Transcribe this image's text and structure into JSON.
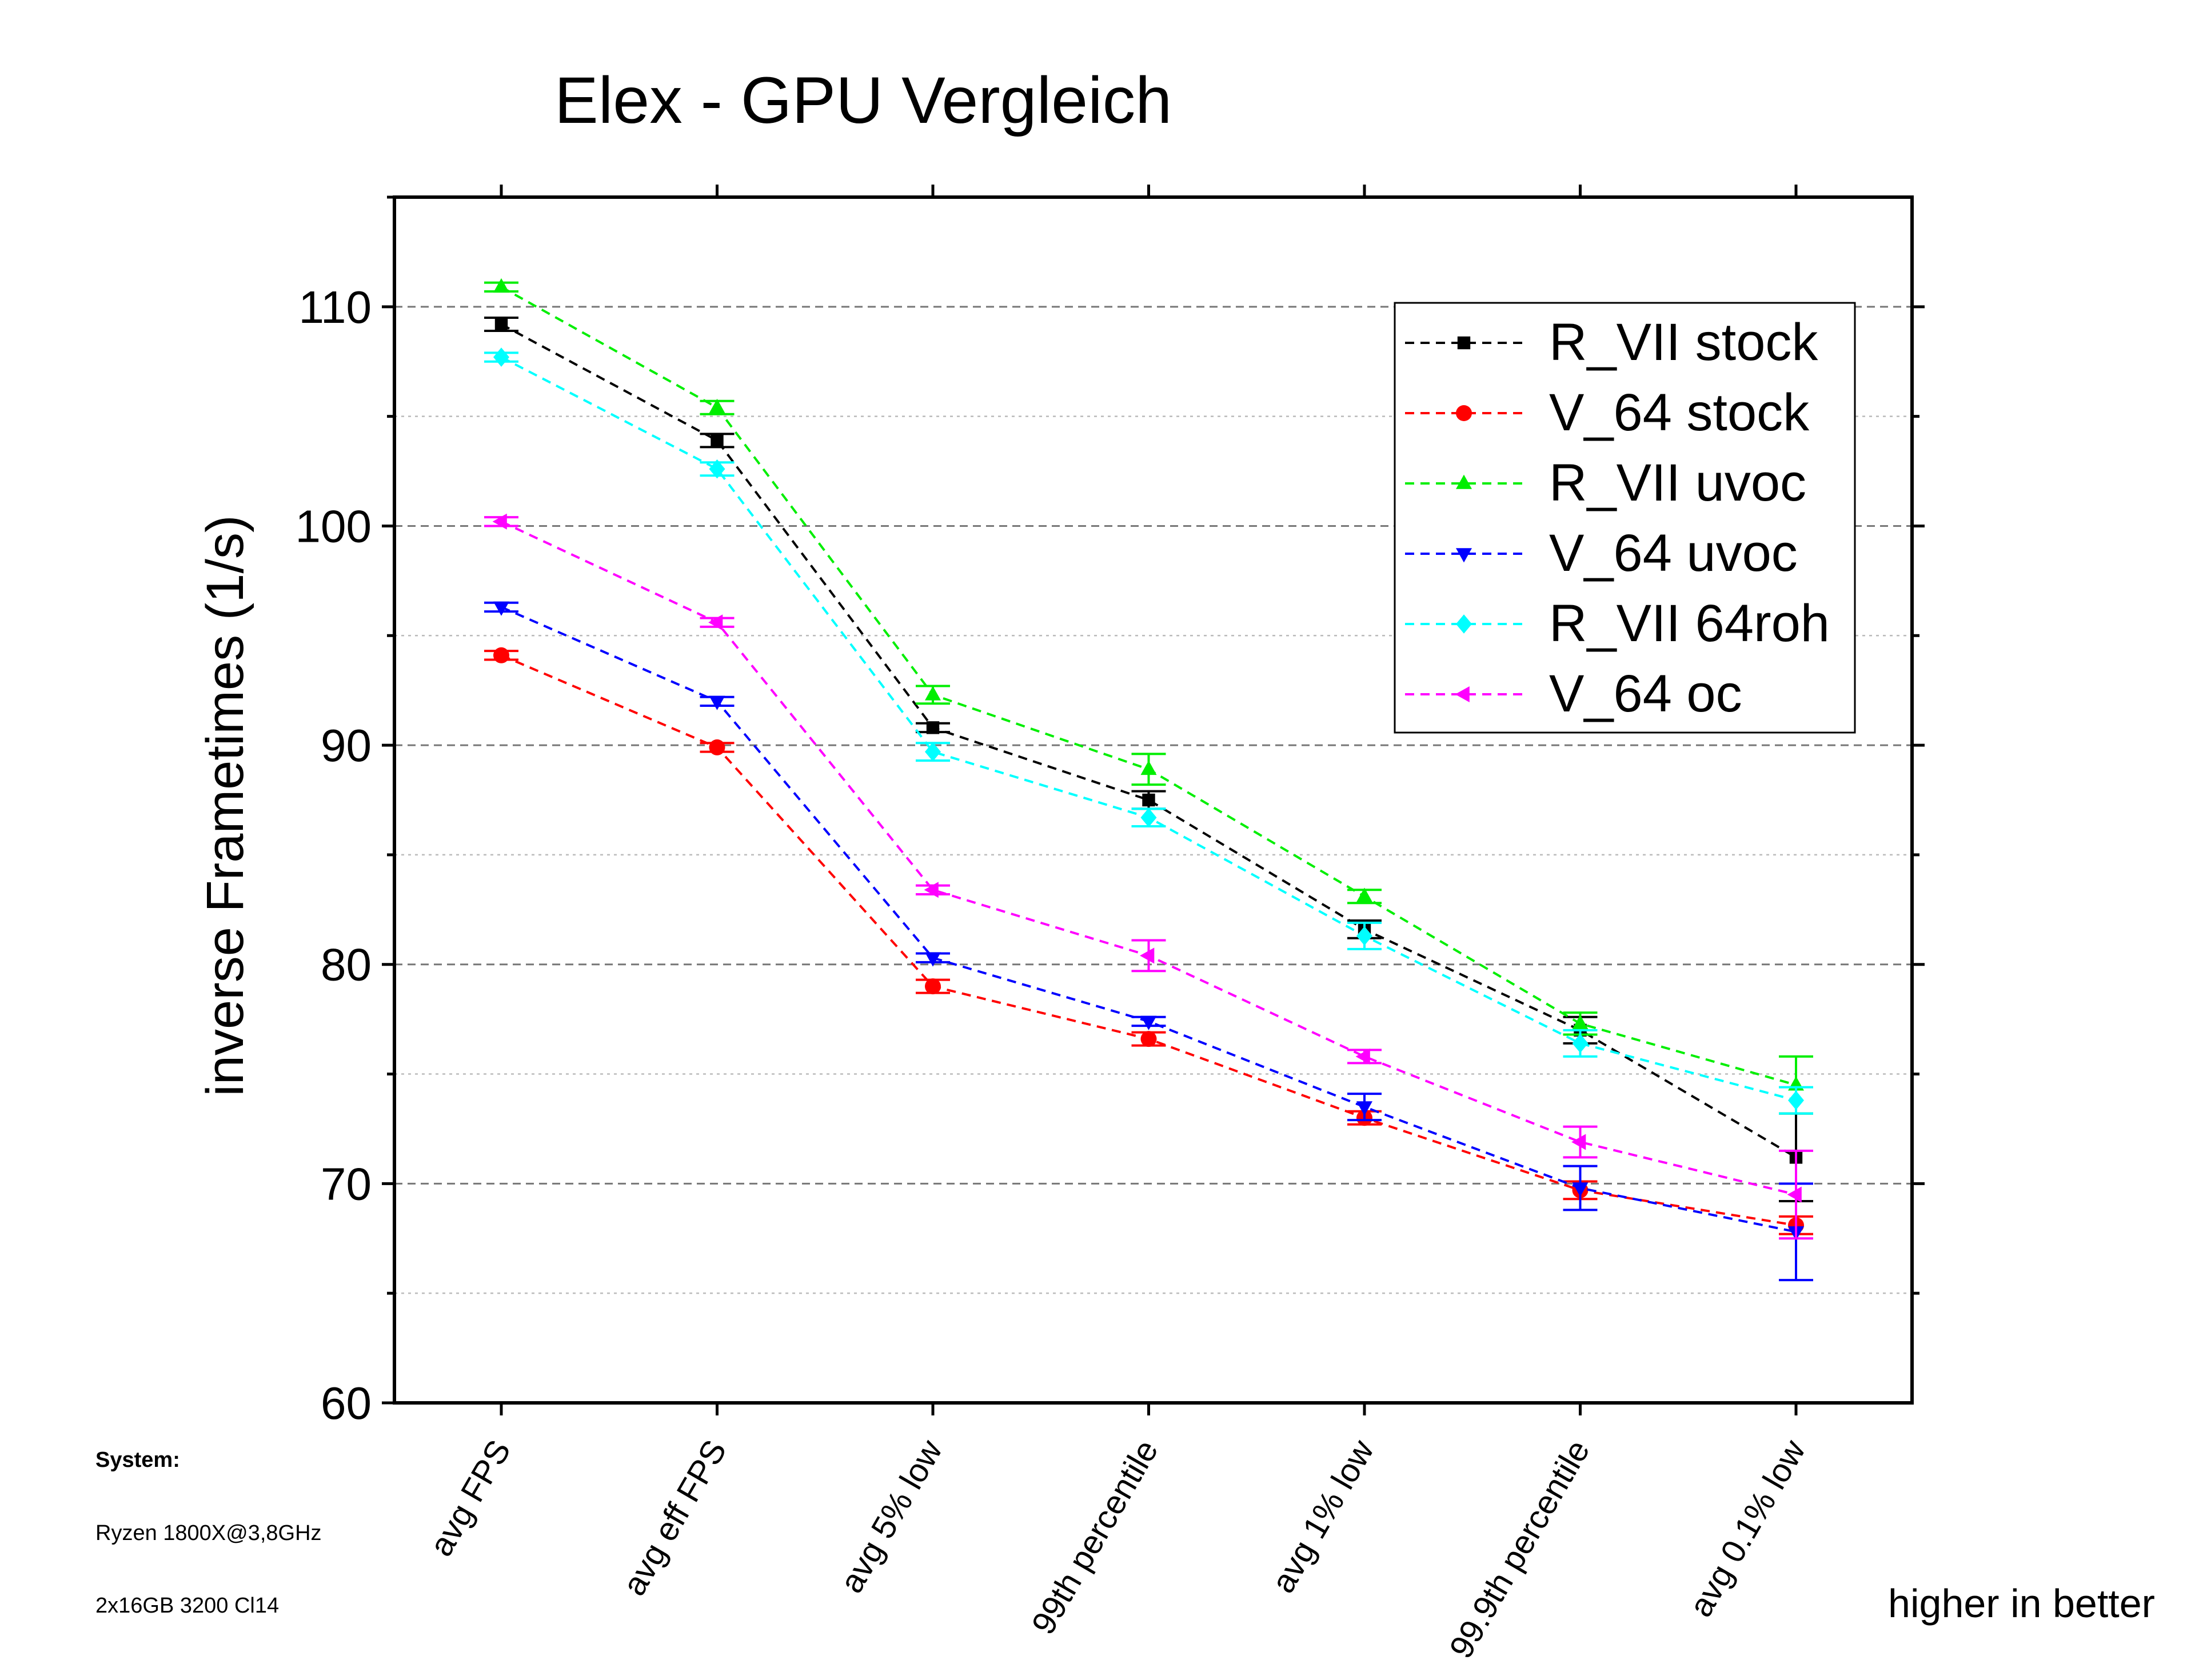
{
  "chart_data": {
    "type": "line",
    "title": "Elex - GPU Vergleich",
    "xlabel": "",
    "ylabel": "inverse Frametimes (1/s)",
    "ylim": [
      60,
      115
    ],
    "yticks": [
      60,
      70,
      80,
      90,
      100,
      110
    ],
    "grid": true,
    "legend_position": "top-right",
    "categories": [
      "avg FPS",
      "avg eff FPS",
      "avg 5% low",
      "99th percentile",
      "avg 1% low",
      "99.9th percentile",
      "avg 0.1% low"
    ],
    "series": [
      {
        "name": "R_VII stock",
        "color": "#000000",
        "marker": "square",
        "values": [
          109.2,
          103.9,
          90.8,
          87.5,
          81.6,
          77.0,
          71.2
        ],
        "errors": [
          0.3,
          0.3,
          0.2,
          0.4,
          0.4,
          0.6,
          2.0
        ]
      },
      {
        "name": "V_64 stock",
        "color": "#ff0000",
        "marker": "circle",
        "values": [
          94.1,
          89.9,
          79.0,
          76.6,
          73.0,
          69.7,
          68.1
        ],
        "errors": [
          0.2,
          0.2,
          0.3,
          0.3,
          0.3,
          0.4,
          0.4
        ]
      },
      {
        "name": "R_VII uvoc",
        "color": "#00ee00",
        "marker": "triangle-up",
        "values": [
          110.9,
          105.4,
          92.3,
          88.9,
          83.1,
          77.3,
          74.5
        ],
        "errors": [
          0.2,
          0.3,
          0.4,
          0.7,
          0.3,
          0.5,
          1.3
        ]
      },
      {
        "name": "V_64 uvoc",
        "color": "#0000ff",
        "marker": "triangle-down",
        "values": [
          96.3,
          92.0,
          80.3,
          77.4,
          73.5,
          69.8,
          67.8
        ],
        "errors": [
          0.2,
          0.2,
          0.2,
          0.2,
          0.6,
          1.0,
          2.2
        ]
      },
      {
        "name": "R_VII 64roh",
        "color": "#00ffff",
        "marker": "diamond",
        "values": [
          107.7,
          102.6,
          89.7,
          86.7,
          81.3,
          76.4,
          73.8
        ],
        "errors": [
          0.2,
          0.3,
          0.4,
          0.4,
          0.6,
          0.6,
          0.6
        ]
      },
      {
        "name": "V_64 oc",
        "color": "#ff00ff",
        "marker": "triangle-left",
        "values": [
          100.2,
          95.6,
          83.4,
          80.4,
          75.8,
          71.9,
          69.5
        ],
        "errors": [
          0.2,
          0.2,
          0.2,
          0.7,
          0.3,
          0.7,
          2.0
        ]
      }
    ]
  },
  "notes": {
    "system_label": "System:",
    "cpu": "Ryzen 1800X@3,8GHz",
    "ram": "2x16GB 3200 Cl14",
    "hint": "higher in better"
  }
}
